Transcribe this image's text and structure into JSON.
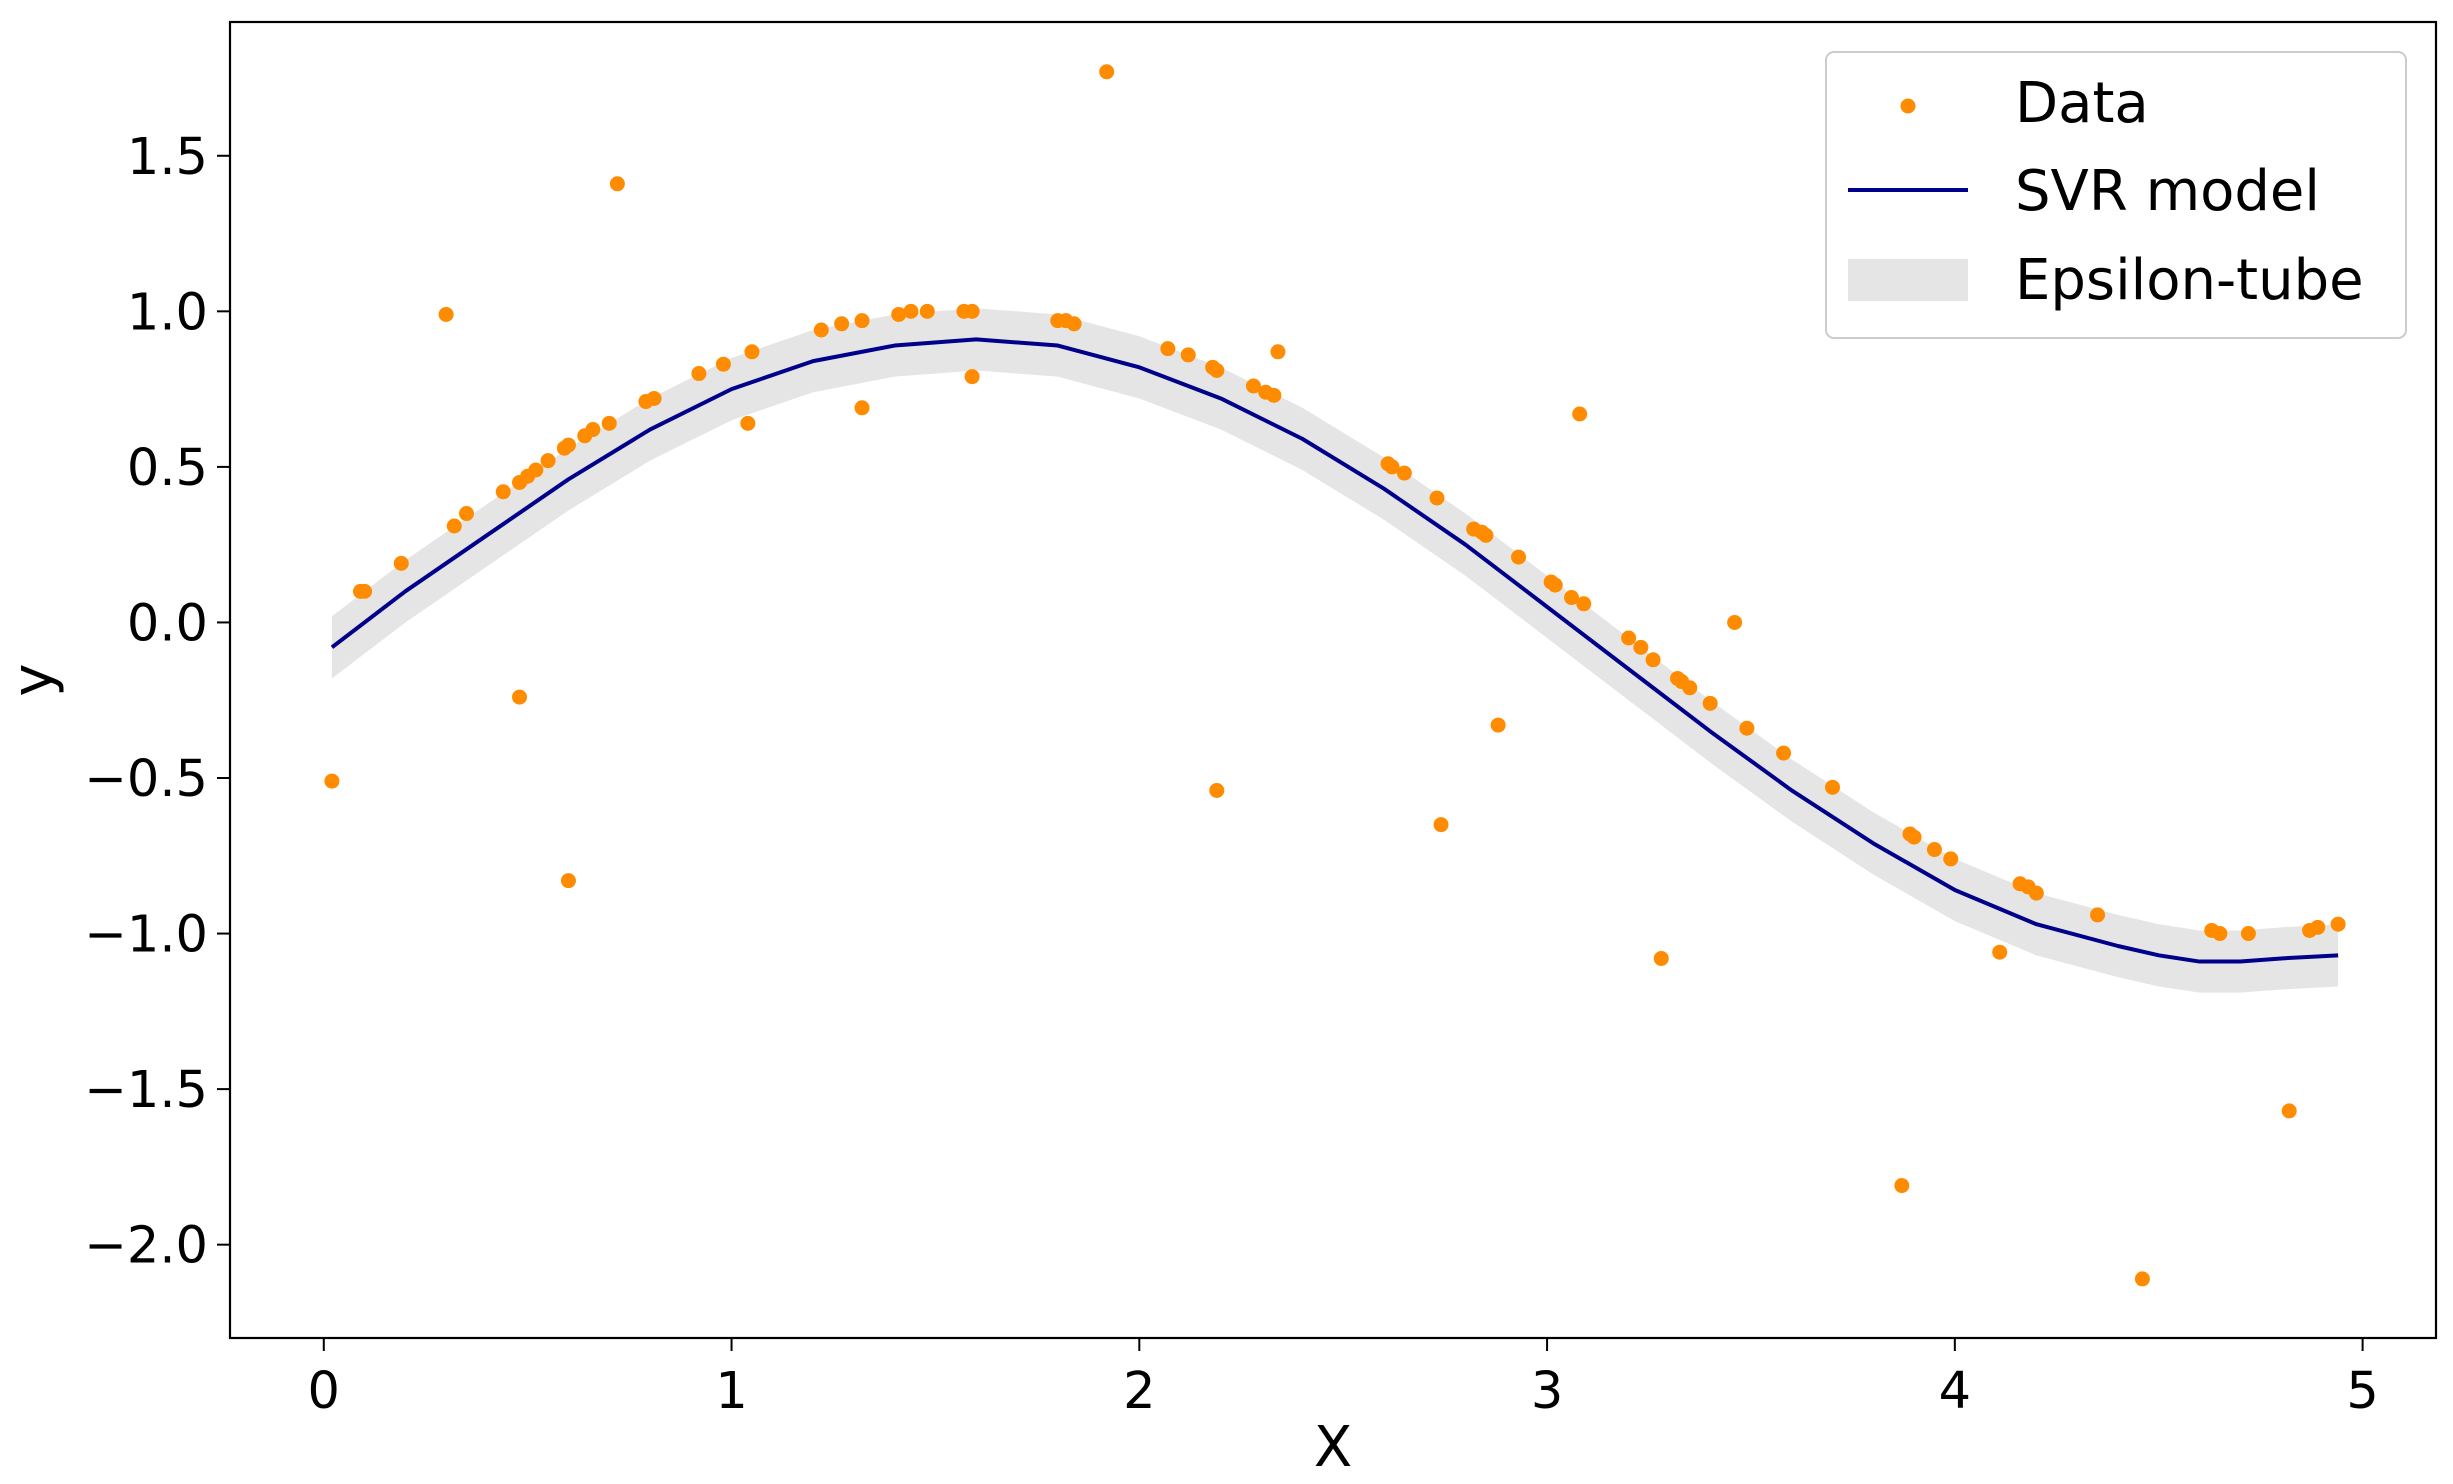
{
  "chart_data": {
    "type": "scatter",
    "xlabel": "X",
    "ylabel": "y",
    "xlim": [
      -0.23,
      5.18
    ],
    "ylim": [
      -2.3,
      1.93
    ],
    "xticks": [
      0,
      1,
      2,
      3,
      4,
      5
    ],
    "xtick_labels": [
      "0",
      "1",
      "2",
      "3",
      "4",
      "5"
    ],
    "yticks": [
      -2.0,
      -1.5,
      -1.0,
      -0.5,
      0.0,
      0.5,
      1.0,
      1.5
    ],
    "ytick_labels": [
      "−2.0",
      "−1.5",
      "−1.0",
      "−0.5",
      "0.0",
      "0.5",
      "1.0",
      "1.5"
    ],
    "grid": false,
    "legend_position": "top-right",
    "legend": [
      "Data",
      "SVR model",
      "Epsilon-tube"
    ],
    "colors": {
      "data": "#ff8c00",
      "model": "#00008b",
      "tube": "#d3d3d3",
      "tube_opacity": 0.6
    },
    "series": [
      {
        "name": "Data",
        "type": "scatter",
        "points": [
          [
            0.02,
            -0.51
          ],
          [
            0.09,
            0.1
          ],
          [
            0.1,
            0.1
          ],
          [
            0.19,
            0.19
          ],
          [
            0.3,
            0.99
          ],
          [
            0.32,
            0.31
          ],
          [
            0.35,
            0.35
          ],
          [
            0.44,
            0.42
          ],
          [
            0.48,
            -0.24
          ],
          [
            0.48,
            0.45
          ],
          [
            0.5,
            0.47
          ],
          [
            0.52,
            0.49
          ],
          [
            0.55,
            0.52
          ],
          [
            0.59,
            0.56
          ],
          [
            0.6,
            -0.83
          ],
          [
            0.6,
            0.57
          ],
          [
            0.64,
            0.6
          ],
          [
            0.66,
            0.62
          ],
          [
            0.7,
            0.64
          ],
          [
            0.72,
            1.41
          ],
          [
            0.79,
            0.71
          ],
          [
            0.81,
            0.72
          ],
          [
            0.92,
            0.8
          ],
          [
            0.98,
            0.83
          ],
          [
            1.04,
            0.64
          ],
          [
            1.05,
            0.87
          ],
          [
            1.22,
            0.94
          ],
          [
            1.27,
            0.96
          ],
          [
            1.32,
            0.69
          ],
          [
            1.32,
            0.97
          ],
          [
            1.41,
            0.99
          ],
          [
            1.44,
            1.0
          ],
          [
            1.48,
            1.0
          ],
          [
            1.57,
            1.0
          ],
          [
            1.59,
            1.0
          ],
          [
            1.59,
            0.79
          ],
          [
            1.8,
            0.97
          ],
          [
            1.82,
            0.97
          ],
          [
            1.84,
            0.96
          ],
          [
            1.92,
            1.77
          ],
          [
            2.07,
            0.88
          ],
          [
            2.12,
            0.86
          ],
          [
            2.18,
            0.82
          ],
          [
            2.19,
            -0.54
          ],
          [
            2.19,
            0.81
          ],
          [
            2.28,
            0.76
          ],
          [
            2.31,
            0.74
          ],
          [
            2.33,
            0.73
          ],
          [
            2.34,
            0.87
          ],
          [
            2.61,
            0.51
          ],
          [
            2.62,
            0.5
          ],
          [
            2.65,
            0.48
          ],
          [
            2.73,
            0.4
          ],
          [
            2.74,
            -0.65
          ],
          [
            2.82,
            0.3
          ],
          [
            2.84,
            0.29
          ],
          [
            2.85,
            0.28
          ],
          [
            2.88,
            -0.33
          ],
          [
            2.93,
            0.21
          ],
          [
            3.01,
            0.13
          ],
          [
            3.02,
            0.12
          ],
          [
            3.06,
            0.08
          ],
          [
            3.08,
            0.67
          ],
          [
            3.09,
            0.06
          ],
          [
            3.2,
            -0.05
          ],
          [
            3.23,
            -0.08
          ],
          [
            3.26,
            -0.12
          ],
          [
            3.28,
            -1.08
          ],
          [
            3.32,
            -0.18
          ],
          [
            3.33,
            -0.19
          ],
          [
            3.35,
            -0.21
          ],
          [
            3.4,
            -0.26
          ],
          [
            3.46,
            0.0
          ],
          [
            3.49,
            -0.34
          ],
          [
            3.58,
            -0.42
          ],
          [
            3.7,
            -0.53
          ],
          [
            3.87,
            -1.81
          ],
          [
            3.89,
            -0.68
          ],
          [
            3.9,
            -0.69
          ],
          [
            3.95,
            -0.73
          ],
          [
            3.99,
            -0.76
          ],
          [
            4.11,
            -1.06
          ],
          [
            4.16,
            -0.84
          ],
          [
            4.18,
            -0.85
          ],
          [
            4.2,
            -0.87
          ],
          [
            4.35,
            -0.94
          ],
          [
            4.46,
            -2.11
          ],
          [
            4.63,
            -0.99
          ],
          [
            4.65,
            -1.0
          ],
          [
            4.72,
            -1.0
          ],
          [
            4.82,
            -1.57
          ],
          [
            4.87,
            -0.99
          ],
          [
            4.89,
            -0.98
          ],
          [
            4.94,
            -0.97
          ]
        ]
      },
      {
        "name": "SVR model",
        "type": "line",
        "x": [
          0.02,
          0.2,
          0.4,
          0.6,
          0.8,
          1.0,
          1.2,
          1.4,
          1.6,
          1.8,
          2.0,
          2.2,
          2.4,
          2.6,
          2.8,
          3.0,
          3.2,
          3.4,
          3.6,
          3.8,
          4.0,
          4.2,
          4.4,
          4.5,
          4.6,
          4.7,
          4.8,
          4.94
        ],
        "y": [
          -0.08,
          0.1,
          0.28,
          0.46,
          0.62,
          0.75,
          0.84,
          0.89,
          0.91,
          0.89,
          0.82,
          0.72,
          0.59,
          0.43,
          0.25,
          0.05,
          -0.15,
          -0.35,
          -0.54,
          -0.71,
          -0.86,
          -0.97,
          -1.04,
          -1.07,
          -1.09,
          -1.09,
          -1.08,
          -1.07
        ]
      },
      {
        "name": "Epsilon-tube",
        "type": "area",
        "epsilon": 0.1
      }
    ]
  }
}
